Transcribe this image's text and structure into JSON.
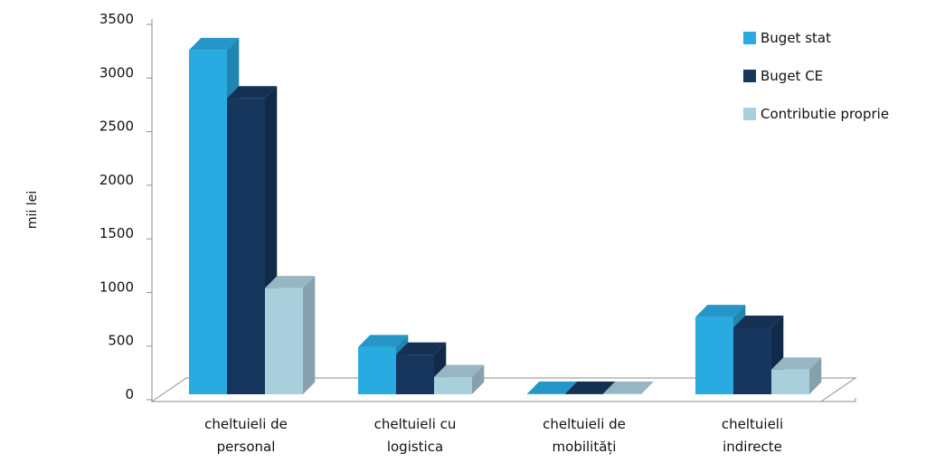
{
  "chart_data": {
    "type": "bar",
    "ylabel": "mii lei",
    "xlabel": "",
    "ylim": [
      0,
      3500
    ],
    "yticks": [
      0,
      500,
      1000,
      1500,
      2000,
      2500,
      3000,
      3500
    ],
    "grid": false,
    "three_d": true,
    "legend_position": "top-right",
    "categories": [
      [
        "cheltuieli de",
        "personal"
      ],
      [
        "cheltuieli cu",
        "logistica"
      ],
      [
        "cheltuieli de",
        "mobilități"
      ],
      [
        "cheltuieli",
        "indirecte"
      ]
    ],
    "series": [
      {
        "name": "Buget stat",
        "color": "#29abe2",
        "values": [
          3210,
          440,
          5,
          720
        ]
      },
      {
        "name": "Buget CE",
        "color": "#17365d",
        "values": [
          2760,
          370,
          5,
          620
        ]
      },
      {
        "name": "Contributie proprie",
        "color": "#a9cfdc",
        "values": [
          990,
          160,
          5,
          230
        ]
      }
    ]
  }
}
